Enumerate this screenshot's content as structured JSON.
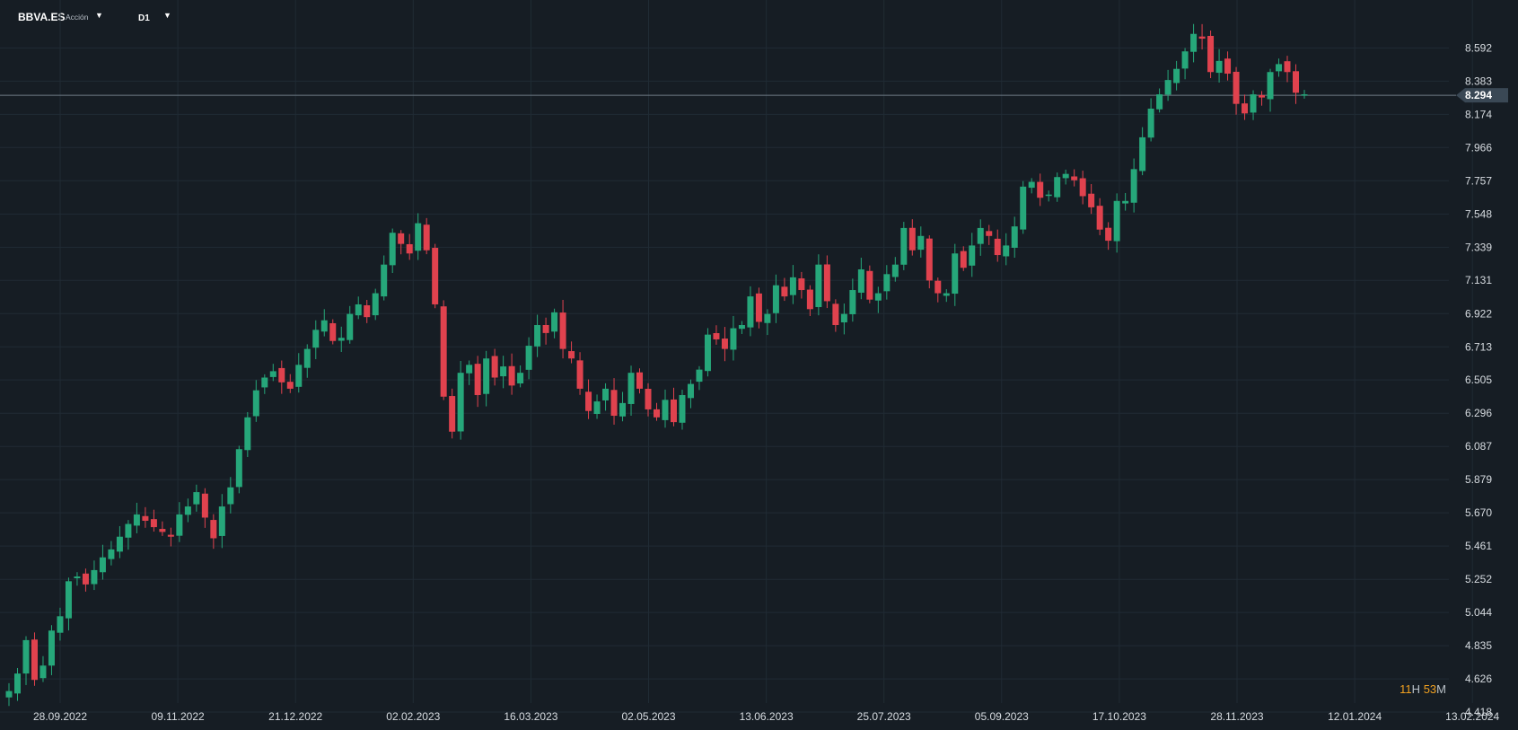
{
  "header": {
    "symbol": "BBVA.ES",
    "instrument_type": "Acción",
    "timeframe": "D1"
  },
  "countdown": {
    "hours": "11",
    "hours_unit": "H",
    "minutes": "53",
    "minutes_unit": "M"
  },
  "colors": {
    "up": "#26a77a",
    "down": "#e0424e",
    "background": "#161d24",
    "grid": "#202b34",
    "text": "#d7dce1",
    "price_line": "#6f7b86"
  },
  "chart_data": {
    "type": "candlestick",
    "symbol": "BBVA.ES",
    "timeframe": "D1",
    "ylim": [
      4.418,
      8.78
    ],
    "y_ticks": [
      "8.592",
      "8.383",
      "8.174",
      "7.966",
      "7.757",
      "7.548",
      "7.339",
      "7.131",
      "6.922",
      "6.713",
      "6.505",
      "6.296",
      "6.087",
      "5.879",
      "5.670",
      "5.461",
      "5.252",
      "5.044",
      "4.835",
      "4.626",
      "4.418"
    ],
    "x_ticks": [
      "28.09.2022",
      "09.11.2022",
      "21.12.2022",
      "02.02.2023",
      "16.03.2023",
      "02.05.2023",
      "13.06.2023",
      "25.07.2023",
      "05.09.2023",
      "17.10.2023",
      "28.11.2023",
      "12.01.2024",
      "13.02.2024"
    ],
    "current_price": "8.294",
    "grid": true,
    "close_series": [
      4.55,
      4.66,
      4.87,
      4.62,
      4.71,
      4.93,
      5.02,
      5.24,
      5.27,
      5.22,
      5.31,
      5.39,
      5.44,
      5.52,
      5.6,
      5.66,
      5.62,
      5.58,
      5.55,
      5.52,
      5.66,
      5.71,
      5.8,
      5.64,
      5.51,
      5.71,
      5.83,
      6.07,
      6.27,
      6.44,
      6.52,
      6.56,
      6.49,
      6.45,
      6.6,
      6.7,
      6.82,
      6.88,
      6.75,
      6.77,
      6.92,
      6.98,
      6.9,
      7.05,
      7.23,
      7.43,
      7.36,
      7.3,
      7.49,
      7.32,
      6.98,
      6.4,
      6.18,
      6.55,
      6.6,
      6.41,
      6.64,
      6.52,
      6.59,
      6.47,
      6.55,
      6.72,
      6.85,
      6.8,
      6.93,
      6.7,
      6.64,
      6.45,
      6.31,
      6.37,
      6.45,
      6.28,
      6.36,
      6.55,
      6.45,
      6.32,
      6.27,
      6.38,
      6.24,
      6.41,
      6.48,
      6.57,
      6.79,
      6.76,
      6.7,
      6.83,
      6.85,
      7.03,
      6.87,
      6.92,
      7.1,
      7.03,
      7.15,
      7.07,
      6.95,
      7.23,
      7.0,
      6.85,
      6.92,
      7.07,
      7.2,
      7.01,
      7.05,
      7.17,
      7.23,
      7.46,
      7.32,
      7.41,
      7.13,
      7.05,
      7.05,
      7.3,
      7.21,
      7.35,
      7.46,
      7.41,
      7.29,
      7.35,
      7.47,
      7.72,
      7.75,
      7.65,
      7.67,
      7.78,
      7.8,
      7.76,
      7.66,
      7.59,
      7.45,
      7.38,
      7.63,
      7.63,
      7.83,
      8.03,
      8.21,
      8.3,
      8.39,
      8.46,
      8.57,
      8.68,
      8.65,
      8.44,
      8.51,
      8.43,
      8.24,
      8.18,
      8.3,
      8.28,
      8.44,
      8.49,
      8.44,
      8.31,
      8.3
    ]
  }
}
